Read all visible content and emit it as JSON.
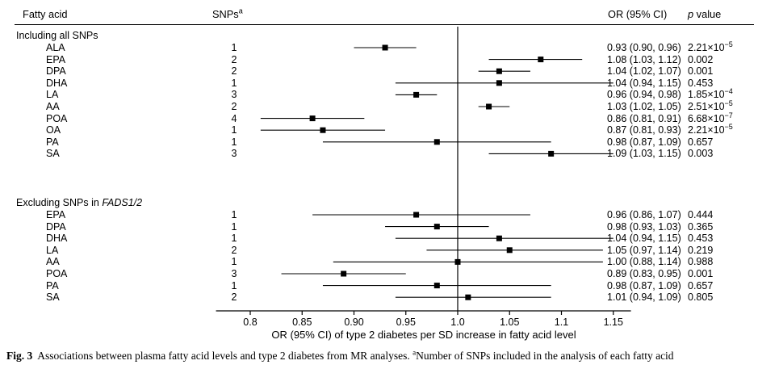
{
  "header": {
    "fatty_acid": "Fatty acid",
    "snps": "SNPs",
    "snps_sup": "a",
    "or_ci": "OR (95% CI)",
    "p_italic": "p",
    "p_rest": " value"
  },
  "caption": {
    "fig_label": "Fig. 3",
    "text": "Associations between plasma fatty acid levels and type 2 diabetes from MR analyses. ",
    "sup": "a",
    "note": "Number of SNPs included in the analysis of each fatty acid"
  },
  "chart_data": {
    "type": "forest",
    "xlabel": "OR (95% CI) of type 2 diabetes per SD increase in fatty acid level",
    "x_ticks": [
      0.8,
      0.85,
      0.9,
      0.95,
      1.0,
      1.05,
      1.1,
      1.15
    ],
    "x_tick_labels": [
      "0.8",
      "0.85",
      "0.90",
      "0.95",
      "1.0",
      "1.05",
      "1.1",
      "1.15"
    ],
    "xlim": [
      0.767,
      1.167
    ],
    "ref_line": 1.0,
    "grid": false,
    "sections": [
      {
        "title": "Including all SNPs",
        "title_italic": "",
        "rows": [
          {
            "label": "ALA",
            "snps": "1",
            "or": 0.93,
            "lo": 0.9,
            "hi": 0.96,
            "or_text": "0.93 (0.90, 0.96)",
            "p_text": "2.21×10^−5"
          },
          {
            "label": "EPA",
            "snps": "2",
            "or": 1.08,
            "lo": 1.03,
            "hi": 1.12,
            "or_text": "1.08 (1.03, 1.12)",
            "p_text": "0.002"
          },
          {
            "label": "DPA",
            "snps": "2",
            "or": 1.04,
            "lo": 1.02,
            "hi": 1.07,
            "or_text": "1.04 (1.02, 1.07)",
            "p_text": "0.001"
          },
          {
            "label": "DHA",
            "snps": "1",
            "or": 1.04,
            "lo": 0.94,
            "hi": 1.15,
            "or_text": "1.04 (0.94, 1.15)",
            "p_text": "0.453"
          },
          {
            "label": "LA",
            "snps": "3",
            "or": 0.96,
            "lo": 0.94,
            "hi": 0.98,
            "or_text": "0.96 (0.94, 0.98)",
            "p_text": "1.85×10^−4"
          },
          {
            "label": "AA",
            "snps": "2",
            "or": 1.03,
            "lo": 1.02,
            "hi": 1.05,
            "or_text": "1.03 (1.02, 1.05)",
            "p_text": "2.51×10^−5"
          },
          {
            "label": "POA",
            "snps": "4",
            "or": 0.86,
            "lo": 0.81,
            "hi": 0.91,
            "or_text": "0.86 (0.81, 0.91)",
            "p_text": "6.68×10^−7"
          },
          {
            "label": "OA",
            "snps": "1",
            "or": 0.87,
            "lo": 0.81,
            "hi": 0.93,
            "or_text": "0.87 (0.81, 0.93)",
            "p_text": "2.21×10^−5"
          },
          {
            "label": "PA",
            "snps": "1",
            "or": 0.98,
            "lo": 0.87,
            "hi": 1.09,
            "or_text": "0.98 (0.87, 1.09)",
            "p_text": "0.657"
          },
          {
            "label": "SA",
            "snps": "3",
            "or": 1.09,
            "lo": 1.03,
            "hi": 1.15,
            "or_text": "1.09 (1.03, 1.15)",
            "p_text": "0.003"
          }
        ]
      },
      {
        "title": "Excluding SNPs in ",
        "title_italic": "FADS1/2",
        "rows": [
          {
            "label": "EPA",
            "snps": "1",
            "or": 0.96,
            "lo": 0.86,
            "hi": 1.07,
            "or_text": "0.96 (0.86, 1.07)",
            "p_text": "0.444"
          },
          {
            "label": "DPA",
            "snps": "1",
            "or": 0.98,
            "lo": 0.93,
            "hi": 1.03,
            "or_text": "0.98 (0.93, 1.03)",
            "p_text": "0.365"
          },
          {
            "label": "DHA",
            "snps": "1",
            "or": 1.04,
            "lo": 0.94,
            "hi": 1.15,
            "or_text": "1.04 (0.94, 1.15)",
            "p_text": "0.453"
          },
          {
            "label": "LA",
            "snps": "2",
            "or": 1.05,
            "lo": 0.97,
            "hi": 1.14,
            "or_text": "1.05 (0.97, 1.14)",
            "p_text": "0.219"
          },
          {
            "label": "AA",
            "snps": "1",
            "or": 1.0,
            "lo": 0.88,
            "hi": 1.14,
            "or_text": "1.00 (0.88, 1.14)",
            "p_text": "0.988"
          },
          {
            "label": "POA",
            "snps": "3",
            "or": 0.89,
            "lo": 0.83,
            "hi": 0.95,
            "or_text": "0.89 (0.83, 0.95)",
            "p_text": "0.001"
          },
          {
            "label": "PA",
            "snps": "1",
            "or": 0.98,
            "lo": 0.87,
            "hi": 1.09,
            "or_text": "0.98 (0.87, 1.09)",
            "p_text": "0.657"
          },
          {
            "label": "SA",
            "snps": "2",
            "or": 1.01,
            "lo": 0.94,
            "hi": 1.09,
            "or_text": "1.01 (0.94, 1.09)",
            "p_text": "0.805"
          }
        ]
      }
    ]
  }
}
